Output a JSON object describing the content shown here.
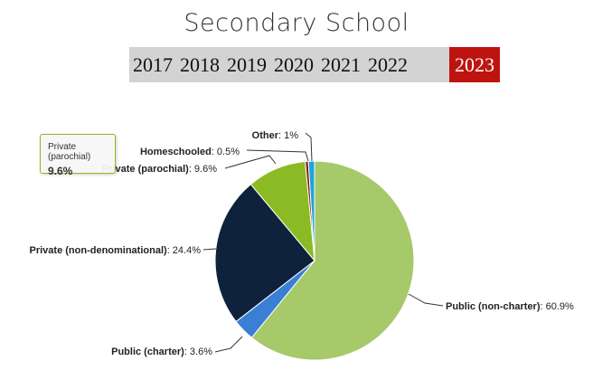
{
  "title": "Secondary School",
  "years": [
    "2017",
    "2018",
    "2019",
    "2020",
    "2021",
    "2022",
    "2023"
  ],
  "selected_year": "2023",
  "colors": {
    "active_year": "#be1410",
    "year_bar": "#d3d3d3"
  },
  "tooltip": {
    "label": "Private (parochial)",
    "value": "9.6%"
  },
  "chart_data": {
    "type": "pie",
    "title": "",
    "slices": [
      {
        "name": "Public (non-charter)",
        "value": 60.9,
        "label": "60.9%",
        "color": "#a6c96a"
      },
      {
        "name": "Public (charter)",
        "value": 3.6,
        "label": "3.6%",
        "color": "#3a7fd5"
      },
      {
        "name": "Private (non-denominational)",
        "value": 24.4,
        "label": "24.4%",
        "color": "#0e233b"
      },
      {
        "name": "Private (parochial)",
        "value": 9.6,
        "label": "9.6%",
        "color": "#8bbb24"
      },
      {
        "name": "Homeschooled",
        "value": 0.5,
        "label": "0.5%",
        "color": "#8b1a1a"
      },
      {
        "name": "Other",
        "value": 1,
        "label": "1%",
        "color": "#1fa5d6"
      }
    ]
  }
}
